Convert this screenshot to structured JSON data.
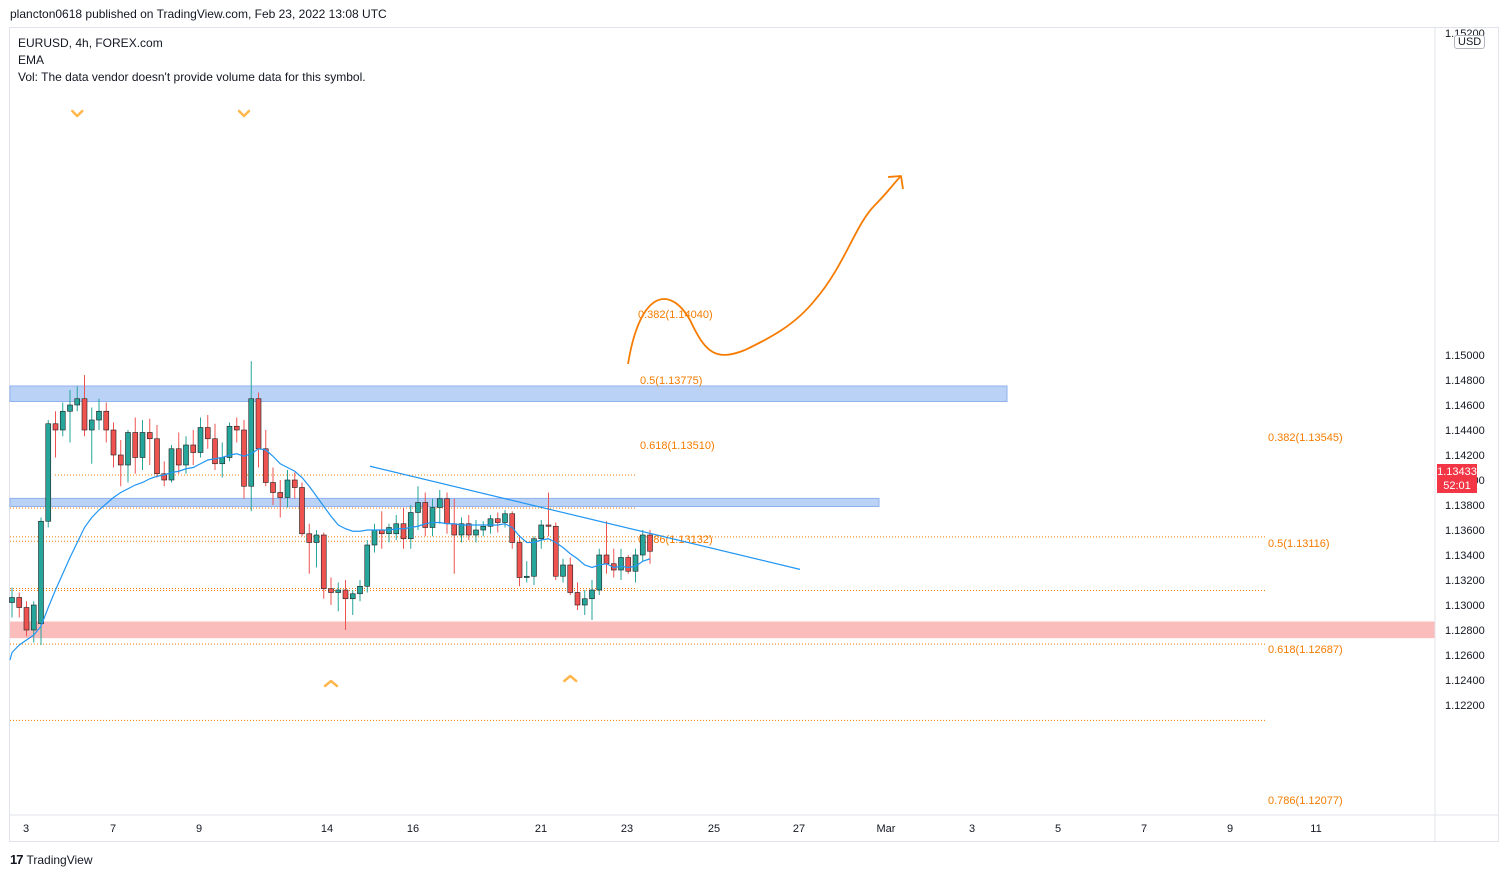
{
  "header": {
    "publisher": "plancton0618 published on TradingView.com, Feb 23, 2022 13:08 UTC"
  },
  "legend": {
    "symbol": "EURUSD, 4h, FOREX.com",
    "indicator": "EMA",
    "volume_note": "Vol: The data vendor doesn't provide volume data for this symbol."
  },
  "footer": {
    "brand": "TradingView"
  },
  "colors": {
    "up": "#26a69a",
    "down": "#ef5350",
    "ema": "#2196f3",
    "fib": "#f57c00",
    "supply_zone": "#bbd2f7",
    "demand_zone": "#fbbcbc",
    "price_tag": "#f23645"
  },
  "price_axis": {
    "currency": "USD",
    "top_partial_label": "1.15200",
    "labels": [
      "1.15000",
      "1.14800",
      "1.14600",
      "1.14400",
      "1.14200",
      "1.14000",
      "1.13800",
      "1.13600",
      "1.13400",
      "1.13200",
      "1.13000",
      "1.12800",
      "1.12600",
      "1.12400",
      "1.12200"
    ]
  },
  "current_price": {
    "value": "1.13433",
    "countdown": "52:01"
  },
  "time_axis": {
    "labels": [
      "3",
      "7",
      "9",
      "14",
      "16",
      "21",
      "23",
      "25",
      "27",
      "Mar",
      "3",
      "5",
      "7",
      "9",
      "11"
    ]
  },
  "chart_data": {
    "type": "candlestick",
    "symbol": "EURUSD",
    "timeframe": "4h",
    "ylim": [
      1.1205,
      1.1528
    ],
    "candles": [
      [
        1.1302,
        1.1314,
        1.129,
        1.1306
      ],
      [
        1.1306,
        1.131,
        1.129,
        1.1298
      ],
      [
        1.1298,
        1.1303,
        1.1275,
        1.128
      ],
      [
        1.128,
        1.1303,
        1.127,
        1.13
      ],
      [
        1.1285,
        1.137,
        1.1268,
        1.1367
      ],
      [
        1.1367,
        1.1448,
        1.1362,
        1.1445
      ],
      [
        1.1445,
        1.1455,
        1.1418,
        1.144
      ],
      [
        1.144,
        1.1462,
        1.1435,
        1.1455
      ],
      [
        1.1455,
        1.1472,
        1.143,
        1.146
      ],
      [
        1.146,
        1.1475,
        1.1455,
        1.1465
      ],
      [
        1.1465,
        1.1484,
        1.1435,
        1.144
      ],
      [
        1.144,
        1.1458,
        1.1413,
        1.1448
      ],
      [
        1.1448,
        1.1465,
        1.144,
        1.1455
      ],
      [
        1.1455,
        1.1462,
        1.143,
        1.144
      ],
      [
        1.144,
        1.1446,
        1.141,
        1.142
      ],
      [
        1.142,
        1.1432,
        1.1395,
        1.1412
      ],
      [
        1.1412,
        1.144,
        1.1398,
        1.1438
      ],
      [
        1.1438,
        1.145,
        1.1405,
        1.1418
      ],
      [
        1.1418,
        1.1448,
        1.1408,
        1.1438
      ],
      [
        1.1438,
        1.1449,
        1.1412,
        1.1433
      ],
      [
        1.1433,
        1.1444,
        1.1402,
        1.1405
      ],
      [
        1.1405,
        1.1415,
        1.1395,
        1.14
      ],
      [
        1.14,
        1.1428,
        1.1398,
        1.1425
      ],
      [
        1.1425,
        1.1438,
        1.1405,
        1.1412
      ],
      [
        1.1412,
        1.1435,
        1.1405,
        1.1428
      ],
      [
        1.1428,
        1.144,
        1.1412,
        1.1422
      ],
      [
        1.1422,
        1.145,
        1.1418,
        1.1442
      ],
      [
        1.1442,
        1.1452,
        1.1425,
        1.1433
      ],
      [
        1.1433,
        1.1445,
        1.1408,
        1.1413
      ],
      [
        1.1413,
        1.143,
        1.1402,
        1.1418
      ],
      [
        1.1418,
        1.1446,
        1.1415,
        1.1443
      ],
      [
        1.1443,
        1.145,
        1.143,
        1.144
      ],
      [
        1.144,
        1.1448,
        1.1385,
        1.1395
      ],
      [
        1.1395,
        1.1495,
        1.1375,
        1.1465
      ],
      [
        1.1465,
        1.147,
        1.141,
        1.1425
      ],
      [
        1.1425,
        1.144,
        1.1395,
        1.1398
      ],
      [
        1.1398,
        1.141,
        1.138,
        1.139
      ],
      [
        1.139,
        1.14,
        1.137,
        1.1386
      ],
      [
        1.1386,
        1.1408,
        1.1378,
        1.14
      ],
      [
        1.14,
        1.1406,
        1.1385,
        1.1394
      ],
      [
        1.1394,
        1.1398,
        1.1355,
        1.1357
      ],
      [
        1.1357,
        1.1365,
        1.1325,
        1.135
      ],
      [
        1.135,
        1.136,
        1.133,
        1.1356
      ],
      [
        1.1356,
        1.1358,
        1.1305,
        1.1313
      ],
      [
        1.1313,
        1.1322,
        1.13,
        1.131
      ],
      [
        1.131,
        1.1318,
        1.1295,
        1.1312
      ],
      [
        1.1312,
        1.132,
        1.128,
        1.1305
      ],
      [
        1.1305,
        1.1312,
        1.1292,
        1.1309
      ],
      [
        1.1309,
        1.132,
        1.1303,
        1.1315
      ],
      [
        1.1315,
        1.1352,
        1.131,
        1.1348
      ],
      [
        1.1348,
        1.1365,
        1.1342,
        1.136
      ],
      [
        1.136,
        1.1375,
        1.1345,
        1.1357
      ],
      [
        1.1357,
        1.1365,
        1.135,
        1.1362
      ],
      [
        1.1357,
        1.1372,
        1.1352,
        1.1365
      ],
      [
        1.1365,
        1.1378,
        1.1345,
        1.1353
      ],
      [
        1.1353,
        1.138,
        1.1345,
        1.1374
      ],
      [
        1.1374,
        1.1395,
        1.136,
        1.1382
      ],
      [
        1.1382,
        1.139,
        1.1355,
        1.1362
      ],
      [
        1.1362,
        1.1385,
        1.1355,
        1.1378
      ],
      [
        1.1378,
        1.1392,
        1.1365,
        1.1385
      ],
      [
        1.1385,
        1.139,
        1.1357,
        1.1365
      ],
      [
        1.1365,
        1.1385,
        1.1325,
        1.1356
      ],
      [
        1.1356,
        1.137,
        1.135,
        1.1365
      ],
      [
        1.1365,
        1.1372,
        1.1352,
        1.1356
      ],
      [
        1.1356,
        1.1368,
        1.135,
        1.136
      ],
      [
        1.136,
        1.1367,
        1.1355,
        1.1363
      ],
      [
        1.1363,
        1.1372,
        1.1357,
        1.1369
      ],
      [
        1.1369,
        1.1374,
        1.1358,
        1.1366
      ],
      [
        1.1366,
        1.1376,
        1.1362,
        1.1373
      ],
      [
        1.1373,
        1.1375,
        1.1345,
        1.135
      ],
      [
        1.135,
        1.1356,
        1.1315,
        1.1322
      ],
      [
        1.1322,
        1.1335,
        1.1318,
        1.1323
      ],
      [
        1.1323,
        1.1355,
        1.1316,
        1.1353
      ],
      [
        1.1353,
        1.1368,
        1.1345,
        1.1364
      ],
      [
        1.1364,
        1.139,
        1.1355,
        1.1363
      ],
      [
        1.1363,
        1.1366,
        1.132,
        1.1323
      ],
      [
        1.1323,
        1.1337,
        1.1318,
        1.1332
      ],
      [
        1.1332,
        1.1338,
        1.1308,
        1.131
      ],
      [
        1.131,
        1.1318,
        1.1296,
        1.13
      ],
      [
        1.13,
        1.1312,
        1.1292,
        1.1305
      ],
      [
        1.1305,
        1.132,
        1.1288,
        1.1312
      ],
      [
        1.1312,
        1.1345,
        1.1308,
        1.134
      ],
      [
        1.134,
        1.1367,
        1.1325,
        1.1333
      ],
      [
        1.1333,
        1.1345,
        1.1322,
        1.1328
      ],
      [
        1.1328,
        1.1345,
        1.132,
        1.1338
      ],
      [
        1.1338,
        1.134,
        1.1325,
        1.1327
      ],
      [
        1.1327,
        1.1345,
        1.1318,
        1.134
      ],
      [
        1.134,
        1.136,
        1.1335,
        1.1356
      ],
      [
        1.1356,
        1.136,
        1.1333,
        1.1343
      ]
    ],
    "ema": [
      1.1262,
      1.1268,
      1.1272,
      1.1276,
      1.1283,
      1.1298,
      1.1312,
      1.1325,
      1.1338,
      1.135,
      1.1362,
      1.137,
      1.1376,
      1.1381,
      1.1386,
      1.139,
      1.1393,
      1.1396,
      1.1398,
      1.1401,
      1.1403,
      1.1404,
      1.1406,
      1.1407,
      1.1409,
      1.141,
      1.1413,
      1.1416,
      1.1417,
      1.1418,
      1.142,
      1.1421,
      1.1419,
      1.1421,
      1.1425,
      1.1424,
      1.1419,
      1.1413,
      1.141,
      1.1407,
      1.1402,
      1.1395,
      1.1387,
      1.1379,
      1.1371,
      1.1364,
      1.1361,
      1.1359,
      1.1359,
      1.136,
      1.136,
      1.136,
      1.136,
      1.1361,
      1.1361,
      1.1362,
      1.1363,
      1.1365,
      1.1366,
      1.1366,
      1.1365,
      1.1365,
      1.1364,
      1.1364,
      1.1364,
      1.1364,
      1.1364,
      1.1364,
      1.1365,
      1.1362,
      1.1355,
      1.135,
      1.135,
      1.1352,
      1.1353,
      1.135,
      1.1346,
      1.1341,
      1.1337,
      1.1332,
      1.133,
      1.1332,
      1.1333,
      1.133,
      1.1331,
      1.133,
      1.1331,
      1.1335,
      1.1337
    ],
    "zones": [
      {
        "kind": "supply",
        "low": 1.14628,
        "high": 1.14752
      },
      {
        "kind": "supply",
        "low": 1.13788,
        "high": 1.13853
      },
      {
        "kind": "demand",
        "low": 1.12735,
        "high": 1.12868
      }
    ],
    "fib_levels": [
      {
        "label": "0.382(1.14040)",
        "price": 1.1404
      },
      {
        "label": "0.5(1.13775)",
        "price": 1.13775
      },
      {
        "label": "0.618(1.13510)",
        "price": 1.1351
      },
      {
        "label": "0.786(1.13132)",
        "price": 1.13132
      },
      {
        "label": "0.382(1.13545)",
        "price": 1.13545
      },
      {
        "label": "0.5(1.13116)",
        "price": 1.13116
      },
      {
        "label": "0.618(1.12687)",
        "price": 1.12687
      },
      {
        "label": "0.786(1.12077)",
        "price": 1.12077
      }
    ],
    "trendline": {
      "start": {
        "index": 42,
        "price": 1.1411
      },
      "end": {
        "index": 94,
        "price": 1.13285
      }
    },
    "markers": [
      {
        "kind": "top",
        "index": 9
      },
      {
        "kind": "top",
        "index": 32
      },
      {
        "kind": "bottom",
        "index": 44
      },
      {
        "kind": "bottom",
        "index": 77
      }
    ]
  }
}
